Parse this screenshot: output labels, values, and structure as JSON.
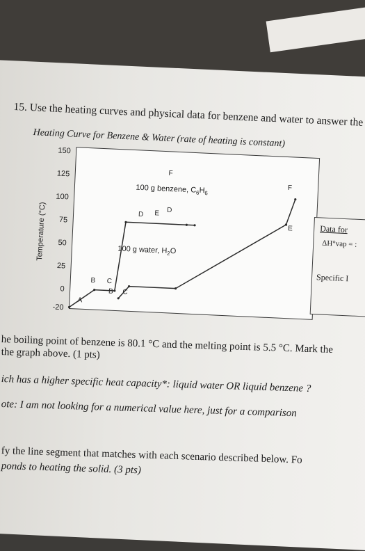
{
  "question": {
    "number": "15.",
    "text": "Use the heating curves and physical data for benzene and water to answer the questio"
  },
  "chart_data": {
    "type": "line",
    "title": "Heating Curve for Benzene & Water (rate of heating is constant)",
    "ylabel": "Temperature (°C)",
    "xlabel": "",
    "ylim": [
      -20,
      150
    ],
    "yticks": [
      150,
      125,
      100,
      75,
      50,
      25,
      0,
      -20
    ],
    "grid": false,
    "series": [
      {
        "name": "100 g water, H2O",
        "x": [
          0,
          1.2,
          2.2,
          2.6,
          5.6,
          6.0
        ],
        "y": [
          -20,
          0,
          0,
          75,
          75,
          75
        ],
        "points": [
          "A",
          "B",
          "C",
          "D",
          "E",
          ""
        ]
      },
      {
        "name": "100 g benzene, C6H6",
        "x": [
          2.4,
          2.9,
          5.2,
          10.5,
          10.5,
          10.9
        ],
        "y": [
          -8,
          5.5,
          5.5,
          80.1,
          80.1,
          108
        ],
        "points": [
          "B",
          "C",
          "D",
          "E",
          "F",
          "F"
        ]
      }
    ],
    "annotations": {
      "benzene_label": "100 g benzene, C",
      "benzene_sub1": "6",
      "benzene_mid": "H",
      "benzene_sub2": "6",
      "water_label": "100 g water, H",
      "water_sub": "2",
      "water_end": "O",
      "letters": [
        {
          "t": "F",
          "x": 4.6,
          "y": 128
        },
        {
          "t": "D",
          "x": 3.2,
          "y": 82
        },
        {
          "t": "E",
          "x": 4.0,
          "y": 84
        },
        {
          "t": "D",
          "x": 4.6,
          "y": 88
        },
        {
          "t": "F",
          "x": 10.5,
          "y": 118
        },
        {
          "t": "E",
          "x": 10.6,
          "y": 74
        },
        {
          "t": "B",
          "x": 1.0,
          "y": 8
        },
        {
          "t": "C",
          "x": 1.8,
          "y": 8
        },
        {
          "t": "B",
          "x": 1.9,
          "y": -3
        },
        {
          "t": "C",
          "x": 2.6,
          "y": -3
        },
        {
          "t": "A",
          "x": 0.4,
          "y": -14
        }
      ]
    }
  },
  "sidebar": {
    "title": "Data for",
    "dh": "ΔH°vap = :",
    "specific": "Specific I"
  },
  "body_lines": [
    "he boiling point of benzene is 80.1 °C and the melting point is 5.5 °C. Mark the",
    "the graph above. (1 pts)",
    "ich has a higher specific heat capacity*:  liquid water  OR  liquid benzene ?",
    "ote: I am not looking for a numerical value here, just for a comparison",
    "fy the line segment that matches with each scenario described below. Fo",
    "ponds to heating the solid.  (3 pts)"
  ]
}
